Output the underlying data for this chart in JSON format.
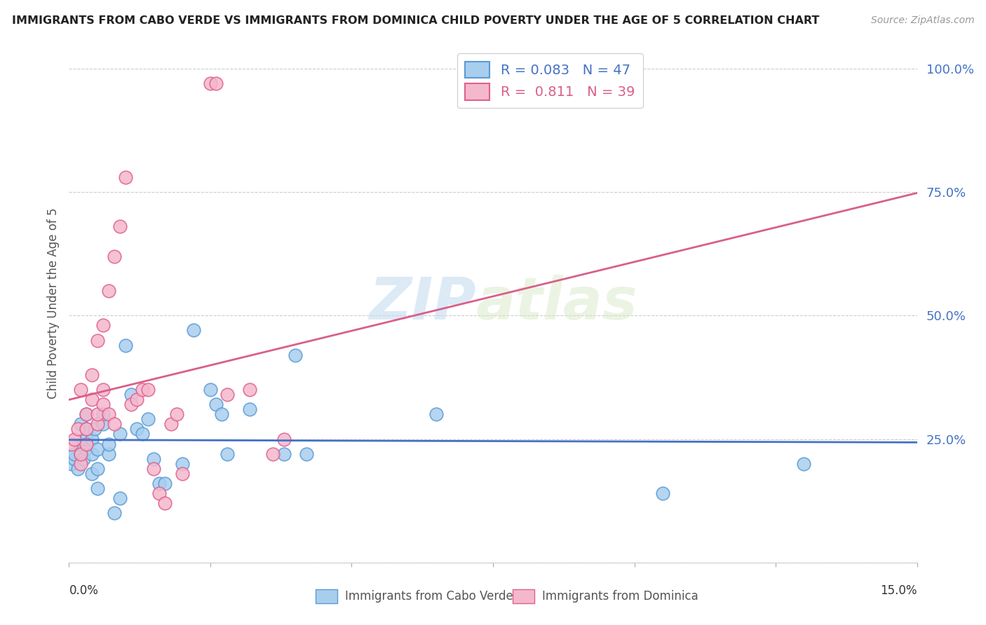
{
  "title": "IMMIGRANTS FROM CABO VERDE VS IMMIGRANTS FROM DOMINICA CHILD POVERTY UNDER THE AGE OF 5 CORRELATION CHART",
  "source": "Source: ZipAtlas.com",
  "ylabel": "Child Poverty Under the Age of 5",
  "yticks": [
    0.0,
    0.25,
    0.5,
    0.75,
    1.0
  ],
  "ytick_labels": [
    "",
    "25.0%",
    "50.0%",
    "75.0%",
    "100.0%"
  ],
  "cabo_verde_R": 0.083,
  "cabo_verde_N": 47,
  "dominica_R": 0.811,
  "dominica_N": 39,
  "cabo_verde_color": "#A8CEEE",
  "dominica_color": "#F4B8CC",
  "cabo_verde_edge_color": "#5B9BD5",
  "dominica_edge_color": "#E06090",
  "cabo_verde_line_color": "#4472C4",
  "dominica_line_color": "#D95F8A",
  "watermark_zip": "ZIP",
  "watermark_atlas": "atlas",
  "background_color": "#FFFFFF",
  "cabo_verde_x": [
    0.0005,
    0.001,
    0.001,
    0.0015,
    0.002,
    0.002,
    0.002,
    0.0025,
    0.003,
    0.003,
    0.003,
    0.003,
    0.004,
    0.004,
    0.004,
    0.0045,
    0.005,
    0.005,
    0.005,
    0.006,
    0.006,
    0.007,
    0.007,
    0.008,
    0.009,
    0.009,
    0.01,
    0.011,
    0.012,
    0.013,
    0.014,
    0.015,
    0.016,
    0.017,
    0.02,
    0.022,
    0.025,
    0.026,
    0.027,
    0.028,
    0.032,
    0.038,
    0.04,
    0.042,
    0.065,
    0.105,
    0.13
  ],
  "cabo_verde_y": [
    0.2,
    0.21,
    0.22,
    0.19,
    0.22,
    0.24,
    0.28,
    0.21,
    0.23,
    0.25,
    0.3,
    0.27,
    0.18,
    0.22,
    0.25,
    0.27,
    0.15,
    0.19,
    0.23,
    0.28,
    0.3,
    0.22,
    0.24,
    0.1,
    0.13,
    0.26,
    0.44,
    0.34,
    0.27,
    0.26,
    0.29,
    0.21,
    0.16,
    0.16,
    0.2,
    0.47,
    0.35,
    0.32,
    0.3,
    0.22,
    0.31,
    0.22,
    0.42,
    0.22,
    0.3,
    0.14,
    0.2
  ],
  "dominica_x": [
    0.0005,
    0.001,
    0.0015,
    0.002,
    0.002,
    0.002,
    0.003,
    0.003,
    0.003,
    0.004,
    0.004,
    0.005,
    0.005,
    0.005,
    0.006,
    0.006,
    0.006,
    0.007,
    0.007,
    0.008,
    0.008,
    0.009,
    0.01,
    0.011,
    0.012,
    0.013,
    0.014,
    0.015,
    0.016,
    0.017,
    0.018,
    0.019,
    0.02,
    0.025,
    0.026,
    0.028,
    0.032,
    0.036,
    0.038
  ],
  "dominica_y": [
    0.24,
    0.25,
    0.27,
    0.2,
    0.22,
    0.35,
    0.24,
    0.27,
    0.3,
    0.33,
    0.38,
    0.28,
    0.3,
    0.45,
    0.32,
    0.35,
    0.48,
    0.3,
    0.55,
    0.28,
    0.62,
    0.68,
    0.78,
    0.32,
    0.33,
    0.35,
    0.35,
    0.19,
    0.14,
    0.12,
    0.28,
    0.3,
    0.18,
    0.97,
    0.97,
    0.34,
    0.35,
    0.22,
    0.25
  ]
}
